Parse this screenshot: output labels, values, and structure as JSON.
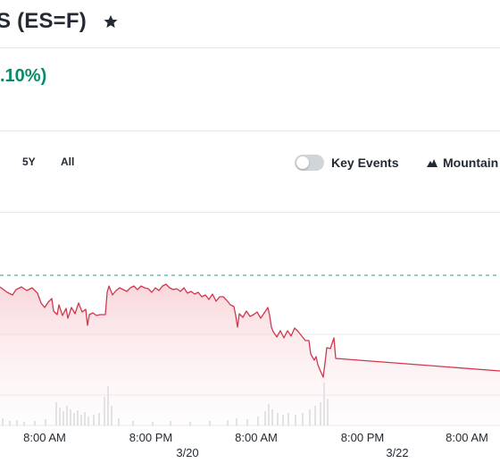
{
  "header": {
    "title": "S (ES=F)",
    "star_icon": "star-icon"
  },
  "quote": {
    "change_text": ".10%)",
    "change_color": "#0a8a6a"
  },
  "range_buttons": [
    {
      "label": "5Y"
    },
    {
      "label": "All"
    }
  ],
  "key_events": {
    "label": "Key Events",
    "enabled": false
  },
  "chart_type": {
    "label": "Mountain",
    "icon": "mountain-icon"
  },
  "chart_data": {
    "type": "area",
    "x_tick_labels": [
      "8:00 AM",
      "8:00 PM",
      "8:00 AM",
      "8:00 PM",
      "8:00 AM"
    ],
    "date_labels": [
      "3/20",
      "3/22"
    ],
    "series_color": "#d0384e",
    "reference_line_color": "#2a9d8f",
    "grid": true,
    "volume_bars": true
  }
}
